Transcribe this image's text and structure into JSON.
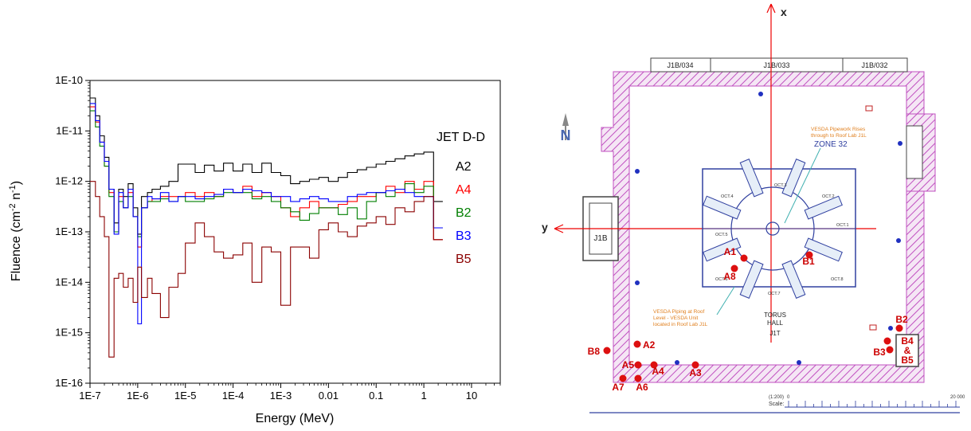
{
  "chart_data": {
    "type": "line",
    "step": true,
    "xscale": "log",
    "yscale": "log",
    "xlim": [
      1e-07,
      40
    ],
    "ylim": [
      1e-16,
      1e-10
    ],
    "xlabel": "Energy (MeV)",
    "ylabel": "Fluence (cm",
    "ylabel_sup1": "-2",
    "ylabel_mid": " n",
    "ylabel_sup2": "-1",
    "ylabel_end": ")",
    "xtick_labels": [
      "1E-7",
      "1E-6",
      "1E-5",
      "1E-4",
      "1E-3",
      "0.01",
      "0.1",
      "1",
      "10"
    ],
    "xtick_values": [
      1e-07,
      1e-06,
      1e-05,
      0.0001,
      0.001,
      0.01,
      0.1,
      1,
      10
    ],
    "ytick_labels": [
      "1E-16",
      "1E-15",
      "1E-14",
      "1E-13",
      "1E-12",
      "1E-11",
      "1E-10"
    ],
    "ytick_values": [
      1e-16,
      1e-15,
      1e-14,
      1e-13,
      1e-12,
      1e-11,
      1e-10
    ],
    "legend_title": "JET D-D",
    "series": [
      {
        "name": "A2",
        "color": "#000000",
        "edges": [
          1e-07,
          1.3e-07,
          1.6e-07,
          2e-07,
          2.5e-07,
          3.2e-07,
          4e-07,
          5e-07,
          6.3e-07,
          8e-07,
          1e-06,
          1.2e-06,
          1.6e-06,
          2e-06,
          3e-06,
          4.5e-06,
          7e-06,
          1e-05,
          1.6e-05,
          2.5e-05,
          4e-05,
          6.3e-05,
          0.0001,
          0.00016,
          0.00025,
          0.0004,
          0.00063,
          0.001,
          0.0016,
          0.0025,
          0.004,
          0.0063,
          0.01,
          0.016,
          0.025,
          0.04,
          0.063,
          0.1,
          0.16,
          0.25,
          0.4,
          0.63,
          1,
          1.6,
          2.5
        ],
        "values": [
          4.5e-11,
          2e-11,
          8e-12,
          3e-12,
          7e-13,
          1.5e-13,
          7e-13,
          5e-13,
          9e-13,
          3e-13,
          9e-14,
          5e-13,
          6e-13,
          7e-13,
          8e-13,
          1e-12,
          2.2e-12,
          2.2e-12,
          1.5e-12,
          2.1e-12,
          1.6e-12,
          2.3e-12,
          1.6e-12,
          2.2e-12,
          1.5e-12,
          2.3e-12,
          1.5e-12,
          1.3e-12,
          9e-13,
          1e-12,
          1.1e-12,
          1.2e-12,
          1e-12,
          1.2e-12,
          1.5e-12,
          1.7e-12,
          1.9e-12,
          2.2e-12,
          2.5e-12,
          2.8e-12,
          3.2e-12,
          3.5e-12,
          3.8e-12,
          4e-13
        ]
      },
      {
        "name": "A4",
        "color": "#ff0000",
        "edges": [
          1e-07,
          1.3e-07,
          1.6e-07,
          2e-07,
          2.5e-07,
          3.2e-07,
          4e-07,
          5e-07,
          6.3e-07,
          8e-07,
          1e-06,
          1.2e-06,
          1.6e-06,
          2e-06,
          3e-06,
          4.5e-06,
          7e-06,
          1e-05,
          1.6e-05,
          2.5e-05,
          4e-05,
          6.3e-05,
          0.0001,
          0.00016,
          0.00025,
          0.0004,
          0.00063,
          0.001,
          0.0016,
          0.0025,
          0.004,
          0.0063,
          0.01,
          0.016,
          0.025,
          0.04,
          0.063,
          0.1,
          0.16,
          0.25,
          0.4,
          0.63,
          1,
          1.6,
          2.5
        ],
        "values": [
          3e-11,
          1.5e-11,
          6e-12,
          2e-12,
          6e-13,
          1e-13,
          5e-13,
          3e-13,
          6e-13,
          2e-13,
          5e-14,
          3e-13,
          4e-13,
          4.5e-13,
          5e-13,
          5e-13,
          5e-13,
          6e-13,
          5e-13,
          6e-13,
          5e-13,
          7e-13,
          6e-13,
          8e-13,
          5e-13,
          6e-13,
          5e-13,
          3e-13,
          2e-13,
          3e-13,
          4e-13,
          3e-13,
          3e-13,
          3.5e-13,
          4e-13,
          5e-13,
          5e-13,
          6e-13,
          8e-13,
          6e-13,
          1e-12,
          7e-13,
          1e-12,
          7e-14
        ]
      },
      {
        "name": "B2",
        "color": "#007f00",
        "edges": [
          1e-07,
          1.3e-07,
          1.6e-07,
          2e-07,
          2.5e-07,
          3.2e-07,
          4e-07,
          5e-07,
          6.3e-07,
          8e-07,
          1e-06,
          1.2e-06,
          1.6e-06,
          2e-06,
          3e-06,
          4.5e-06,
          7e-06,
          1e-05,
          1.6e-05,
          2.5e-05,
          4e-05,
          6.3e-05,
          0.0001,
          0.00016,
          0.00025,
          0.0004,
          0.00063,
          0.001,
          0.0016,
          0.0025,
          0.004,
          0.0063,
          0.01,
          0.016,
          0.025,
          0.04,
          0.063,
          0.1,
          0.16,
          0.25,
          0.4,
          0.63,
          1,
          1.6,
          2.5
        ],
        "values": [
          2.5e-11,
          1.2e-11,
          5e-12,
          2e-12,
          5e-13,
          1e-13,
          4e-13,
          3e-13,
          5e-13,
          2e-13,
          8e-14,
          3e-13,
          4e-13,
          4e-13,
          4.5e-13,
          4e-13,
          5e-13,
          4e-13,
          4e-13,
          4.5e-13,
          5e-13,
          6e-13,
          6e-13,
          6e-13,
          4.5e-13,
          5e-13,
          4e-13,
          3e-13,
          2.5e-13,
          1.7e-13,
          2.3e-13,
          3e-13,
          3e-13,
          2.2e-13,
          3e-13,
          1.8e-13,
          4e-13,
          6e-13,
          5e-13,
          7e-13,
          9e-13,
          6e-13,
          8e-13,
          1.2e-13
        ]
      },
      {
        "name": "B3",
        "color": "#0000ff",
        "edges": [
          1e-07,
          1.3e-07,
          1.6e-07,
          2e-07,
          2.5e-07,
          3.2e-07,
          4e-07,
          5e-07,
          6.3e-07,
          8e-07,
          1e-06,
          1.2e-06,
          1.6e-06,
          2e-06,
          3e-06,
          4.5e-06,
          7e-06,
          1e-05,
          1.6e-05,
          2.5e-05,
          4e-05,
          6.3e-05,
          0.0001,
          0.00016,
          0.00025,
          0.0004,
          0.00063,
          0.001,
          0.0016,
          0.0025,
          0.004,
          0.0063,
          0.01,
          0.016,
          0.025,
          0.04,
          0.063,
          0.1,
          0.16,
          0.25,
          0.4,
          0.63,
          1,
          1.6,
          2.5
        ],
        "values": [
          3.5e-11,
          1.6e-11,
          6e-12,
          2.5e-12,
          7e-13,
          9e-14,
          6e-13,
          3e-13,
          7e-13,
          2e-13,
          1.5e-15,
          3e-13,
          5e-13,
          4.5e-13,
          6e-13,
          4e-13,
          5e-13,
          5e-13,
          4.5e-13,
          5e-13,
          5.5e-13,
          7e-13,
          6e-13,
          7e-13,
          6.5e-13,
          6e-13,
          5e-13,
          5e-13,
          4e-13,
          4.5e-13,
          5e-13,
          4.5e-13,
          4e-13,
          4e-13,
          5e-13,
          5.5e-13,
          6e-13,
          6e-13,
          6.5e-13,
          7e-13,
          6e-13,
          5e-13,
          5e-13,
          1.2e-13
        ]
      },
      {
        "name": "B5",
        "color": "#8b0000",
        "edges": [
          1e-07,
          1.3e-07,
          1.6e-07,
          2e-07,
          2.5e-07,
          3.2e-07,
          4e-07,
          5e-07,
          6.3e-07,
          8e-07,
          1e-06,
          1.2e-06,
          1.6e-06,
          2e-06,
          3e-06,
          4.5e-06,
          7e-06,
          1e-05,
          1.6e-05,
          2.5e-05,
          4e-05,
          6.3e-05,
          0.0001,
          0.00016,
          0.00025,
          0.0004,
          0.00063,
          0.001,
          0.0016,
          0.0025,
          0.004,
          0.0063,
          0.01,
          0.016,
          0.025,
          0.04,
          0.063,
          0.1,
          0.16,
          0.25,
          0.4,
          0.63,
          1,
          1.6,
          2.5
        ],
        "values": [
          1e-12,
          5e-13,
          2e-13,
          8e-14,
          3.3e-16,
          1.2e-14,
          1.5e-14,
          8e-15,
          1.2e-14,
          4e-15,
          2e-14,
          5e-15,
          1.2e-14,
          6e-15,
          2e-15,
          8e-15,
          1.5e-14,
          6e-14,
          1.5e-13,
          8e-14,
          4e-14,
          3e-14,
          3.5e-14,
          6e-14,
          1e-14,
          5e-14,
          4e-14,
          3.5e-15,
          5e-14,
          5e-14,
          3e-14,
          1.1e-13,
          1.5e-13,
          1e-13,
          8e-14,
          1.3e-13,
          1.5e-13,
          2e-13,
          1.4e-13,
          3e-13,
          2.5e-13,
          4e-13,
          5e-13,
          7e-14
        ]
      }
    ]
  },
  "map": {
    "rooms_top": [
      "J1B/034",
      "J1B/033",
      "J1B/032"
    ],
    "axis_x_label": "x",
    "axis_y_label": "y",
    "side_room_label": "J1B",
    "north_label": "N",
    "zone_label": "ZONE 32",
    "note1_line1": "VESDA Pipework Rises",
    "note1_line2": "through to Roof Lab J1L",
    "note2_line1": "VESDA Piping at Roof",
    "note2_line2": "Level - VESDA Unit",
    "note2_line3": "located in Roof Lab J1L",
    "hall_line1": "TORUS",
    "hall_line2": "HALL",
    "hall_line3": "J1T",
    "oct_labels": [
      "OCT.1",
      "OCT.2",
      "OCT.3",
      "OCT.4",
      "OCT.5",
      "OCT.6",
      "OCT.7",
      "OCT.8"
    ],
    "scale_label": "Scale:",
    "scale_start": "0",
    "scale_end": "20 000",
    "scale_ratio": "(1:200)",
    "markers": [
      "A1",
      "A2",
      "A3",
      "A4",
      "A5",
      "A6",
      "A7",
      "A8",
      "B1",
      "B2",
      "B3",
      "B4",
      "B5",
      "B8"
    ],
    "b45_mid": "&",
    "b45_top": "B4",
    "b45_bot": "B5"
  }
}
